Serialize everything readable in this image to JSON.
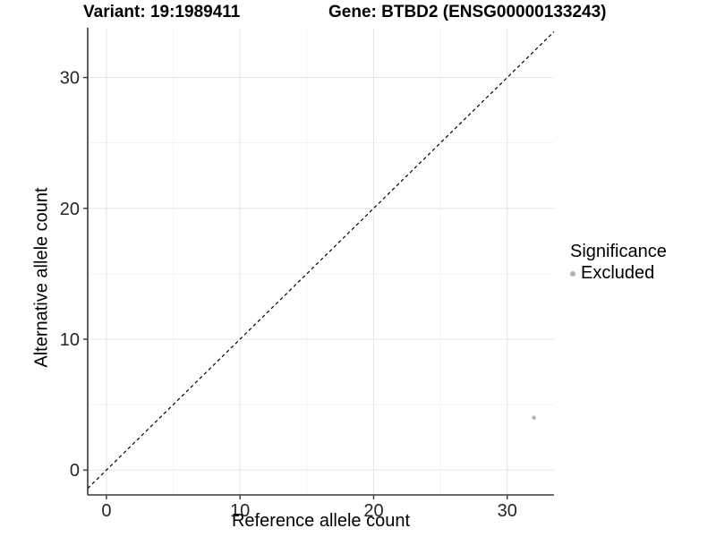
{
  "header": {
    "variant_title": "Variant: 19:1989411",
    "gene_title": "Gene: BTBD2 (ENSG00000133243)"
  },
  "chart_data": {
    "type": "scatter",
    "title_left": "Variant: 19:1989411",
    "title_right": "Gene: BTBD2 (ENSG00000133243)",
    "xlabel": "Reference allele count",
    "ylabel": "Alternative allele count",
    "xlim": [
      -1.4,
      33.5
    ],
    "ylim": [
      -1.9,
      33.8
    ],
    "x_ticks": [
      0,
      10,
      20,
      30
    ],
    "y_ticks": [
      0,
      10,
      20,
      30
    ],
    "minor_x_ticks": [
      5,
      15,
      25
    ],
    "minor_y_ticks": [
      5,
      15,
      25
    ],
    "grid": true,
    "identity_line": {
      "style": "dashed",
      "from": -1.4,
      "to": 33.5,
      "color": "#000000"
    },
    "series": [
      {
        "name": "Excluded",
        "color": "#b3b3b3",
        "points": [
          {
            "x": 32,
            "y": 4
          }
        ]
      }
    ],
    "legend": {
      "title": "Significance",
      "position": "right",
      "entries": [
        {
          "label": "Excluded",
          "color": "#b3b3b3"
        }
      ]
    },
    "colors": {
      "axis": "#383838",
      "grid_major": "#e7e7e7",
      "grid_minor": "#f3f3f3",
      "tick_label": "#262626",
      "point": "#b3b3b3",
      "dashed_line": "#000000"
    }
  }
}
